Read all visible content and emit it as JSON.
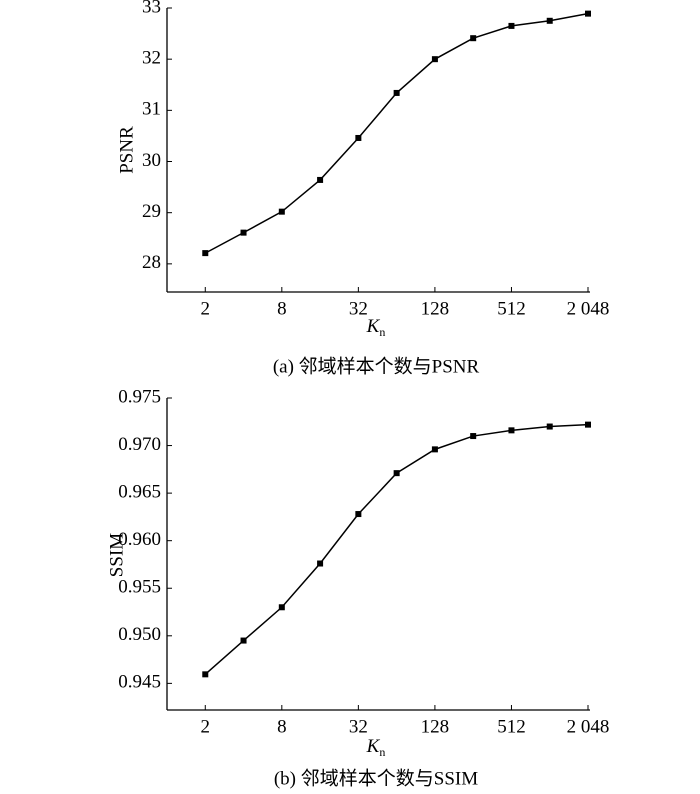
{
  "chart_data": [
    {
      "type": "line",
      "ylabel": "PSNR",
      "xlabel": "K",
      "xlabel_sub": "n",
      "caption": "(a) 邻域样本个数与PSNR",
      "x": [
        2,
        4,
        8,
        16,
        32,
        64,
        128,
        256,
        512,
        1024,
        2048
      ],
      "xscale": "log2",
      "xlim": [
        1,
        2048
      ],
      "xticks": [
        2,
        8,
        32,
        128,
        512,
        {
          "value": 2048,
          "label": "2 048"
        }
      ],
      "ylim": [
        27.45,
        33
      ],
      "yticks": [
        28,
        29,
        30,
        31,
        32,
        33
      ],
      "series": [
        {
          "color": "#000000",
          "values": [
            28.21,
            28.61,
            29.02,
            29.64,
            30.46,
            31.34,
            32.0,
            32.41,
            32.65,
            32.75,
            32.89
          ]
        }
      ]
    },
    {
      "type": "line",
      "ylabel": "SSIM",
      "xlabel": "K",
      "xlabel_sub": "n",
      "caption": "(b) 邻域样本个数与SSIM",
      "x": [
        2,
        4,
        8,
        16,
        32,
        64,
        128,
        256,
        512,
        1024,
        2048
      ],
      "xscale": "log2",
      "xlim": [
        1,
        2048
      ],
      "xticks": [
        2,
        8,
        32,
        128,
        512,
        {
          "value": 2048,
          "label": "2 048"
        }
      ],
      "ylim": [
        0.9422,
        0.975
      ],
      "yticks": [
        0.945,
        {
          "value": 0.95,
          "label": "0.950"
        },
        0.955,
        {
          "value": 0.96,
          "label": "0.960"
        },
        0.965,
        {
          "value": 0.97,
          "label": "0.970"
        },
        0.975
      ],
      "series": [
        {
          "color": "#000000",
          "values": [
            0.94595,
            0.9495,
            0.953,
            0.9576,
            0.9628,
            0.9671,
            0.9696,
            0.971,
            0.9716,
            0.972,
            0.9722
          ]
        }
      ]
    }
  ]
}
